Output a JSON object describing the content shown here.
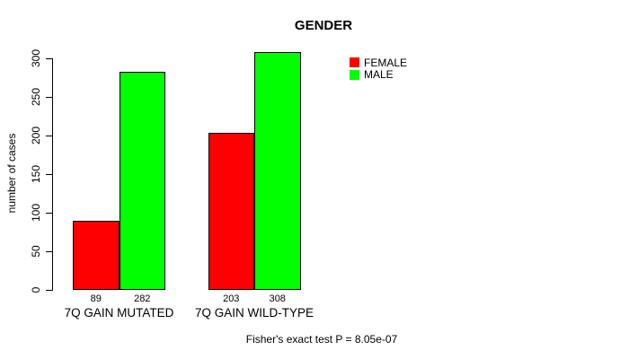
{
  "title": "GENDER",
  "y_axis": {
    "label": "number of cases",
    "ticks": [
      0,
      50,
      100,
      150,
      200,
      250,
      300
    ]
  },
  "legend": {
    "items": [
      {
        "label": "FEMALE",
        "color": "#ff0000"
      },
      {
        "label": "MALE",
        "color": "#00ff00"
      }
    ]
  },
  "footer": "Fisher's exact test P = 8.05e-07",
  "chart_data": {
    "type": "bar",
    "title": "GENDER",
    "xlabel": "",
    "ylabel": "number of cases",
    "categories": [
      "7Q GAIN MUTATED",
      "7Q GAIN WILD-TYPE"
    ],
    "series": [
      {
        "name": "FEMALE",
        "color": "#ff0000",
        "values": [
          89,
          203
        ]
      },
      {
        "name": "MALE",
        "color": "#00ff00",
        "values": [
          282,
          308
        ]
      }
    ],
    "bar_value_labels": [
      [
        89,
        282
      ],
      [
        203,
        308
      ]
    ],
    "yticks": [
      0,
      50,
      100,
      150,
      200,
      250,
      300
    ],
    "ylim": [
      0,
      310
    ],
    "grid": false,
    "legend_position": "upper-right",
    "annotation": "Fisher's exact test P = 8.05e-07"
  }
}
